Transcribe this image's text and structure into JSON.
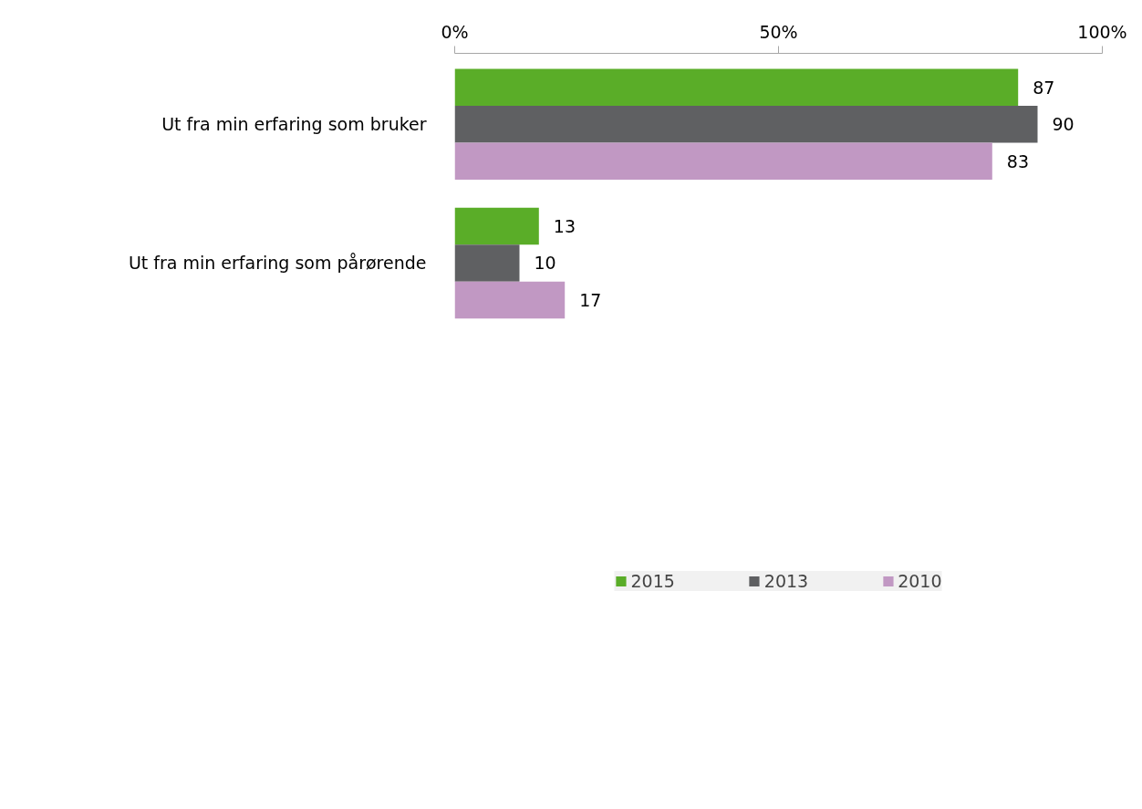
{
  "chart_data": {
    "type": "bar",
    "orientation": "horizontal",
    "categories": [
      "Ut fra min erfaring som bruker",
      "Ut fra min erfaring som pårørende"
    ],
    "series": [
      {
        "name": "2015",
        "color": "#5aad28",
        "values": [
          87,
          13
        ]
      },
      {
        "name": "2013",
        "color": "#5f6062",
        "values": [
          90,
          10
        ]
      },
      {
        "name": "2010",
        "color": "#c198c3",
        "values": [
          83,
          17
        ]
      }
    ],
    "xlim": [
      0,
      100
    ],
    "xticks": [
      {
        "value": 0,
        "label": "0%"
      },
      {
        "value": 50,
        "label": "50%"
      },
      {
        "value": 100,
        "label": "100%"
      }
    ],
    "data_labels": true,
    "legend": "bottom",
    "grid": false
  }
}
